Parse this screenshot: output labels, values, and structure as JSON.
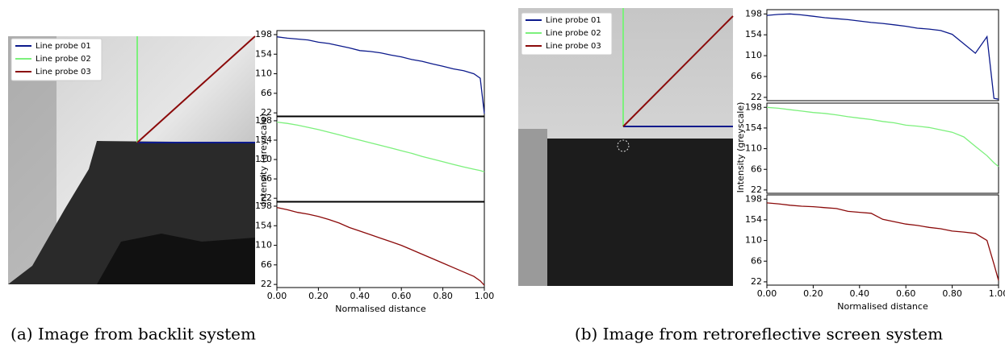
{
  "chart_data": [
    {
      "type": "line",
      "caption": "(a) Image from backlit system",
      "ylabel": "Intensity (greyscale)",
      "xlabel": "Normalised distance",
      "x": [
        0,
        0.05,
        0.1,
        0.15,
        0.2,
        0.25,
        0.3,
        0.35,
        0.4,
        0.45,
        0.5,
        0.55,
        0.6,
        0.65,
        0.7,
        0.75,
        0.8,
        0.85,
        0.9,
        0.95,
        0.98,
        1.0
      ],
      "xlim": [
        0,
        1.0
      ],
      "xticks": [
        {
          "value": 0,
          "label": "0.00"
        },
        {
          "value": 0.2,
          "label": "0.20"
        },
        {
          "value": 0.4,
          "label": "0.40"
        },
        {
          "value": 0.6,
          "label": "0.60"
        },
        {
          "value": 0.8,
          "label": "0.80"
        },
        {
          "value": 1.0,
          "label": "1.00"
        }
      ],
      "ylim": [
        15,
        207
      ],
      "yticks": [
        22,
        66,
        110,
        154,
        198
      ],
      "series": [
        {
          "name": "Line probe 01",
          "color": "#0c1a8c",
          "values": [
            193,
            190,
            188,
            186,
            181,
            178,
            173,
            168,
            162,
            160,
            157,
            152,
            148,
            142,
            138,
            132,
            127,
            121,
            117,
            110,
            100,
            20
          ]
        },
        {
          "name": "Line probe 02",
          "color": "#7cf07c",
          "values": [
            195,
            192,
            188,
            183,
            178,
            172,
            166,
            160,
            154,
            148,
            142,
            136,
            130,
            124,
            117,
            111,
            105,
            99,
            93,
            88,
            85,
            82
          ]
        },
        {
          "name": "Line probe 03",
          "color": "#8b0a0a",
          "values": [
            195,
            190,
            184,
            180,
            175,
            168,
            160,
            150,
            142,
            134,
            126,
            118,
            110,
            100,
            90,
            80,
            70,
            60,
            50,
            40,
            30,
            20
          ]
        }
      ]
    },
    {
      "type": "line",
      "caption": "(b) Image from retroreflective screen system",
      "ylabel": "Intensity (greyscale)",
      "xlabel": "Normalised distance",
      "x": [
        0,
        0.05,
        0.1,
        0.15,
        0.2,
        0.25,
        0.3,
        0.35,
        0.4,
        0.45,
        0.5,
        0.55,
        0.6,
        0.65,
        0.7,
        0.75,
        0.8,
        0.85,
        0.9,
        0.95,
        0.98,
        1.0
      ],
      "xlim": [
        0,
        1.0
      ],
      "xticks": [
        {
          "value": 0,
          "label": "0.00"
        },
        {
          "value": 0.2,
          "label": "0.20"
        },
        {
          "value": 0.4,
          "label": "0.40"
        },
        {
          "value": 0.6,
          "label": "0.60"
        },
        {
          "value": 0.8,
          "label": "0.80"
        },
        {
          "value": 1.0,
          "label": "1.00"
        }
      ],
      "ylim": [
        15,
        207
      ],
      "yticks": [
        22,
        66,
        110,
        154,
        198
      ],
      "series": [
        {
          "name": "Line probe 01",
          "color": "#0c1a8c",
          "values": [
            195,
            197,
            198,
            196,
            193,
            190,
            188,
            186,
            183,
            180,
            178,
            175,
            172,
            168,
            166,
            163,
            155,
            135,
            115,
            150,
            20,
            18
          ]
        },
        {
          "name": "Line probe 02",
          "color": "#7cf07c",
          "values": [
            198,
            196,
            193,
            190,
            187,
            185,
            182,
            178,
            175,
            172,
            168,
            165,
            160,
            158,
            155,
            150,
            145,
            135,
            115,
            95,
            80,
            72
          ]
        },
        {
          "name": "Line probe 03",
          "color": "#8b0a0a",
          "values": [
            190,
            188,
            185,
            183,
            182,
            180,
            178,
            172,
            170,
            168,
            155,
            150,
            145,
            142,
            138,
            135,
            130,
            128,
            125,
            110,
            60,
            25
          ]
        }
      ]
    }
  ]
}
